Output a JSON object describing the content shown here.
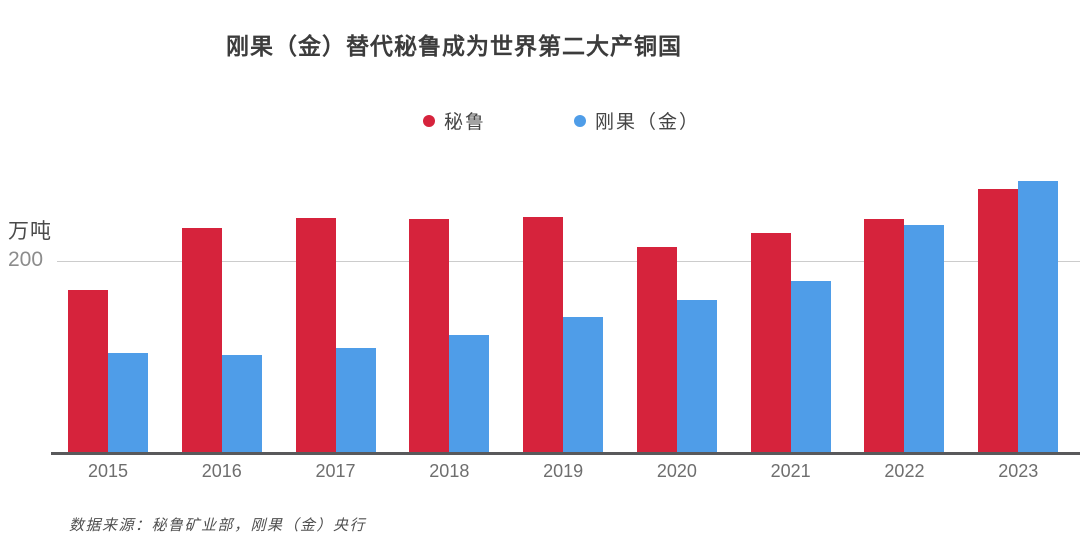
{
  "title": "刚果（金）替代秘鲁成为世界第二大产铜国",
  "y_axis": {
    "unit_label": "万吨",
    "tick_label": "200",
    "tick_value": 200
  },
  "legend": {
    "items": [
      {
        "label": "秘鲁",
        "color": "#d6233c"
      },
      {
        "label": "刚果（金）",
        "color": "#4f9de8"
      }
    ]
  },
  "source_note": "数据来源：秘鲁矿业部，刚果（金）央行",
  "colors": {
    "peru_red": "#d6233c",
    "congo_blue": "#4f9de8",
    "grid_line": "#cccccc",
    "axis_line": "#59595b",
    "title_text": "#3c3c3c",
    "label_gray": "#6e6e6e"
  },
  "chart_data": {
    "type": "bar",
    "categories": [
      "2015",
      "2016",
      "2017",
      "2018",
      "2019",
      "2020",
      "2021",
      "2022",
      "2023"
    ],
    "series": [
      {
        "name": "秘鲁",
        "color": "#d6233c",
        "values": [
          170,
          235,
          245,
          244,
          246,
          215,
          230,
          244,
          276
        ]
      },
      {
        "name": "刚果（金）",
        "color": "#4f9de8",
        "values": [
          104,
          102,
          110,
          123,
          142,
          160,
          180,
          238,
          284
        ]
      }
    ],
    "title": "刚果（金）替代秘鲁成为世界第二大产铜国",
    "xlabel": "",
    "ylabel": "万吨",
    "ylim": [
      0,
      316
    ],
    "gridlines": [
      200
    ],
    "legend_position": "top",
    "grid": "single-horizontal-line"
  }
}
